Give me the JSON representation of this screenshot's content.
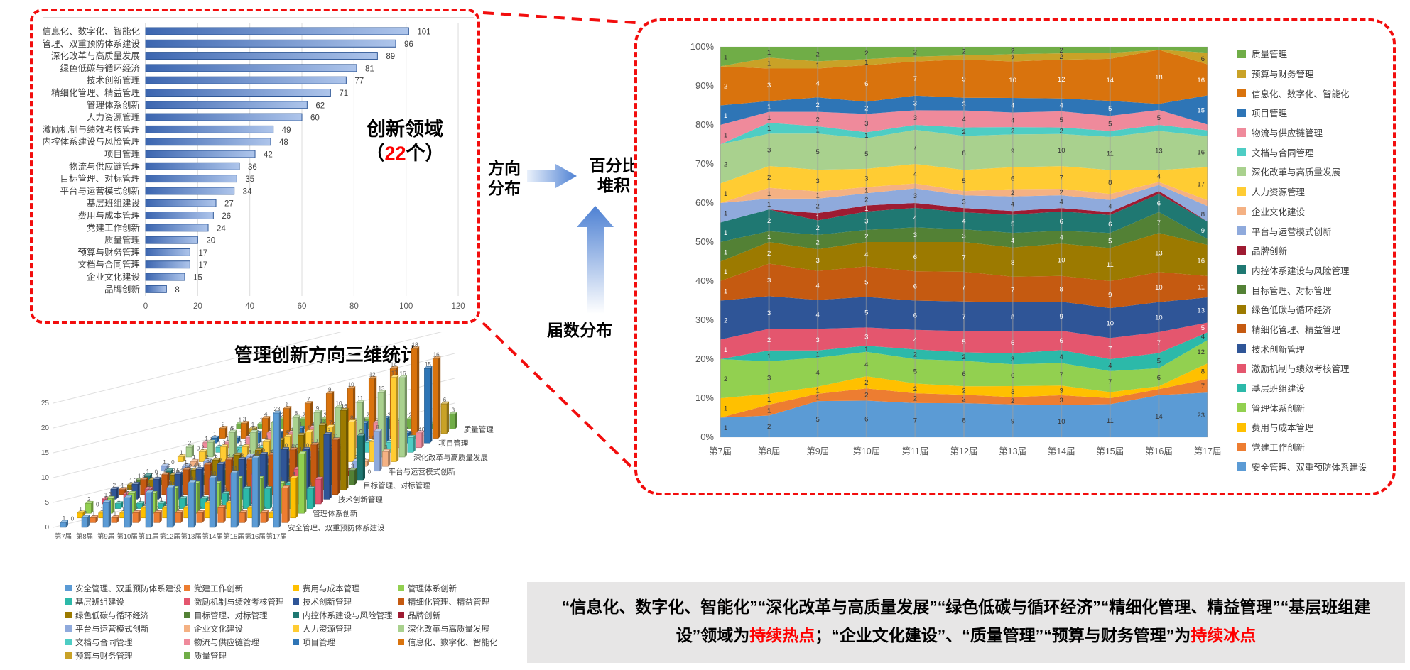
{
  "left_panel": {
    "annotation": {
      "prefix": "创新领域\n（",
      "count": "22",
      "suffix": "个）"
    }
  },
  "middle": {
    "direction_label": "方向\n分布",
    "stack_label": "百分比\n堆积",
    "session_label": "届数分布"
  },
  "bar3d_title": "管理创新方向三维统计",
  "bottom_text": {
    "seg1": "“信息化、数字化、智能化”“深化改革与高质量发展”“绿色低碳与循环经济”“精细化管理、精益管理”“基层班组建设”领域为",
    "hot": "持续热点",
    "seg2": "；“企业文化建设”、“质量管理”“预算与财务管理”为",
    "cold": "持续冰点"
  },
  "colors": {
    "callout_red": "#F20D0D",
    "highlight_red": "#FF0000",
    "bar_blue": "#4472C4"
  },
  "chart_data": {
    "sessions": [
      "第7届",
      "第8届",
      "第9届",
      "第10届",
      "第11届",
      "第12届",
      "第13届",
      "第14届",
      "第15届",
      "第16届",
      "第17届"
    ],
    "bar": {
      "type": "bar",
      "orientation": "horizontal",
      "categories": [
        "信息化、数字化、智能化",
        "安全管理、双重预防体系建设",
        "深化改革与高质量发展",
        "绿色低碳与循环经济",
        "技术创新管理",
        "精细化管理、精益管理",
        "管理体系创新",
        "人力资源管理",
        "激励机制与绩效考核管理",
        "内控体系建设与风险管理",
        "项目管理",
        "物流与供应链管理",
        "目标管理、对标管理",
        "平台与运营模式创新",
        "基层班组建设",
        "费用与成本管理",
        "党建工作创新",
        "质量管理",
        "预算与财务管理",
        "文档与合同管理",
        "企业文化建设",
        "品牌创新"
      ],
      "values": [
        101,
        96,
        89,
        81,
        77,
        71,
        62,
        60,
        49,
        48,
        42,
        36,
        35,
        34,
        27,
        26,
        24,
        20,
        17,
        17,
        15,
        8
      ],
      "xticks": [
        0,
        20,
        40,
        60,
        80,
        100,
        120
      ]
    },
    "area": {
      "type": "area",
      "mode": "100%-stacked",
      "yticks": [
        0,
        10,
        20,
        30,
        40,
        50,
        60,
        70,
        80,
        90,
        100
      ]
    },
    "bar3d": {
      "type": "bar3d",
      "yticks": [
        0,
        5,
        10,
        15,
        20,
        25
      ],
      "right_label_indices": [
        21,
        18,
        15,
        12,
        9,
        6,
        3,
        0
      ]
    },
    "series": [
      {
        "name": "安全管理、双重预防体系建设",
        "color": "#5B9BD5",
        "values": [
          1,
          2,
          5,
          6,
          7,
          8,
          9,
          10,
          11,
          14,
          23
        ]
      },
      {
        "name": "党建工作创新",
        "color": "#ED7D31",
        "values": [
          0,
          1,
          1,
          2,
          2,
          2,
          2,
          3,
          2,
          2,
          7
        ]
      },
      {
        "name": "费用与成本管理",
        "color": "#FFC000",
        "values": [
          1,
          1,
          1,
          2,
          2,
          2,
          3,
          3,
          2,
          1,
          8
        ]
      },
      {
        "name": "管理体系创新",
        "color": "#92D050",
        "values": [
          2,
          3,
          4,
          4,
          5,
          6,
          6,
          7,
          7,
          6,
          12
        ]
      },
      {
        "name": "基层班组建设",
        "color": "#2CB9A9",
        "values": [
          0,
          1,
          1,
          1,
          2,
          2,
          3,
          4,
          4,
          5,
          4
        ]
      },
      {
        "name": "激励机制与绩效考核管理",
        "color": "#E4566E",
        "values": [
          1,
          2,
          3,
          3,
          4,
          5,
          6,
          6,
          7,
          7,
          5
        ]
      },
      {
        "name": "技术创新管理",
        "color": "#2F5597",
        "values": [
          2,
          3,
          4,
          5,
          6,
          7,
          8,
          9,
          10,
          10,
          13
        ]
      },
      {
        "name": "精细化管理、精益管理",
        "color": "#C55A11",
        "values": [
          1,
          3,
          4,
          5,
          6,
          7,
          7,
          8,
          9,
          10,
          11
        ]
      },
      {
        "name": "绿色低碳与循环经济",
        "color": "#9C7A00",
        "values": [
          1,
          2,
          3,
          4,
          6,
          7,
          8,
          10,
          11,
          13,
          16
        ]
      },
      {
        "name": "目标管理、对标管理",
        "color": "#538135",
        "values": [
          1,
          1,
          2,
          2,
          3,
          3,
          4,
          4,
          5,
          7,
          3
        ]
      },
      {
        "name": "内控体系建设与风险管理",
        "color": "#1F7872",
        "values": [
          1,
          2,
          2,
          3,
          4,
          4,
          5,
          6,
          6,
          6,
          9
        ]
      },
      {
        "name": "品牌创新",
        "color": "#9E1B32",
        "values": [
          0,
          0,
          1,
          1,
          1,
          1,
          1,
          1,
          1,
          1,
          0
        ]
      },
      {
        "name": "平台与运营模式创新",
        "color": "#8FAADC",
        "values": [
          1,
          1,
          2,
          2,
          3,
          3,
          4,
          4,
          4,
          2,
          8
        ]
      },
      {
        "name": "企业文化建设",
        "color": "#F4B183",
        "values": [
          0,
          1,
          1,
          1,
          1,
          1,
          2,
          2,
          2,
          1,
          3
        ]
      },
      {
        "name": "人力资源管理",
        "color": "#FFCC33",
        "values": [
          1,
          2,
          3,
          3,
          4,
          5,
          6,
          7,
          8,
          4,
          17
        ]
      },
      {
        "name": "深化改革与高质量发展",
        "color": "#A9D18E",
        "values": [
          2,
          3,
          5,
          5,
          7,
          8,
          9,
          10,
          11,
          13,
          16
        ]
      },
      {
        "name": "文档与合同管理",
        "color": "#4ECDC4",
        "values": [
          0,
          1,
          1,
          1,
          1,
          2,
          2,
          2,
          2,
          2,
          3
        ]
      },
      {
        "name": "物流与供应链管理",
        "color": "#EF8A9B",
        "values": [
          1,
          1,
          2,
          3,
          3,
          4,
          4,
          5,
          5,
          5,
          3
        ]
      },
      {
        "name": "项目管理",
        "color": "#2E75B6",
        "values": [
          1,
          1,
          2,
          2,
          3,
          3,
          4,
          4,
          5,
          2,
          15
        ]
      },
      {
        "name": "信息化、数字化、智能化",
        "color": "#D9730D",
        "values": [
          2,
          3,
          4,
          6,
          7,
          9,
          10,
          12,
          14,
          18,
          16
        ]
      },
      {
        "name": "预算与财务管理",
        "color": "#C9A227",
        "values": [
          0,
          1,
          1,
          1,
          1,
          1,
          2,
          2,
          2,
          0,
          6
        ]
      },
      {
        "name": "质量管理",
        "color": "#70AD47",
        "values": [
          1,
          1,
          2,
          2,
          2,
          2,
          2,
          2,
          2,
          1,
          3
        ]
      }
    ]
  }
}
